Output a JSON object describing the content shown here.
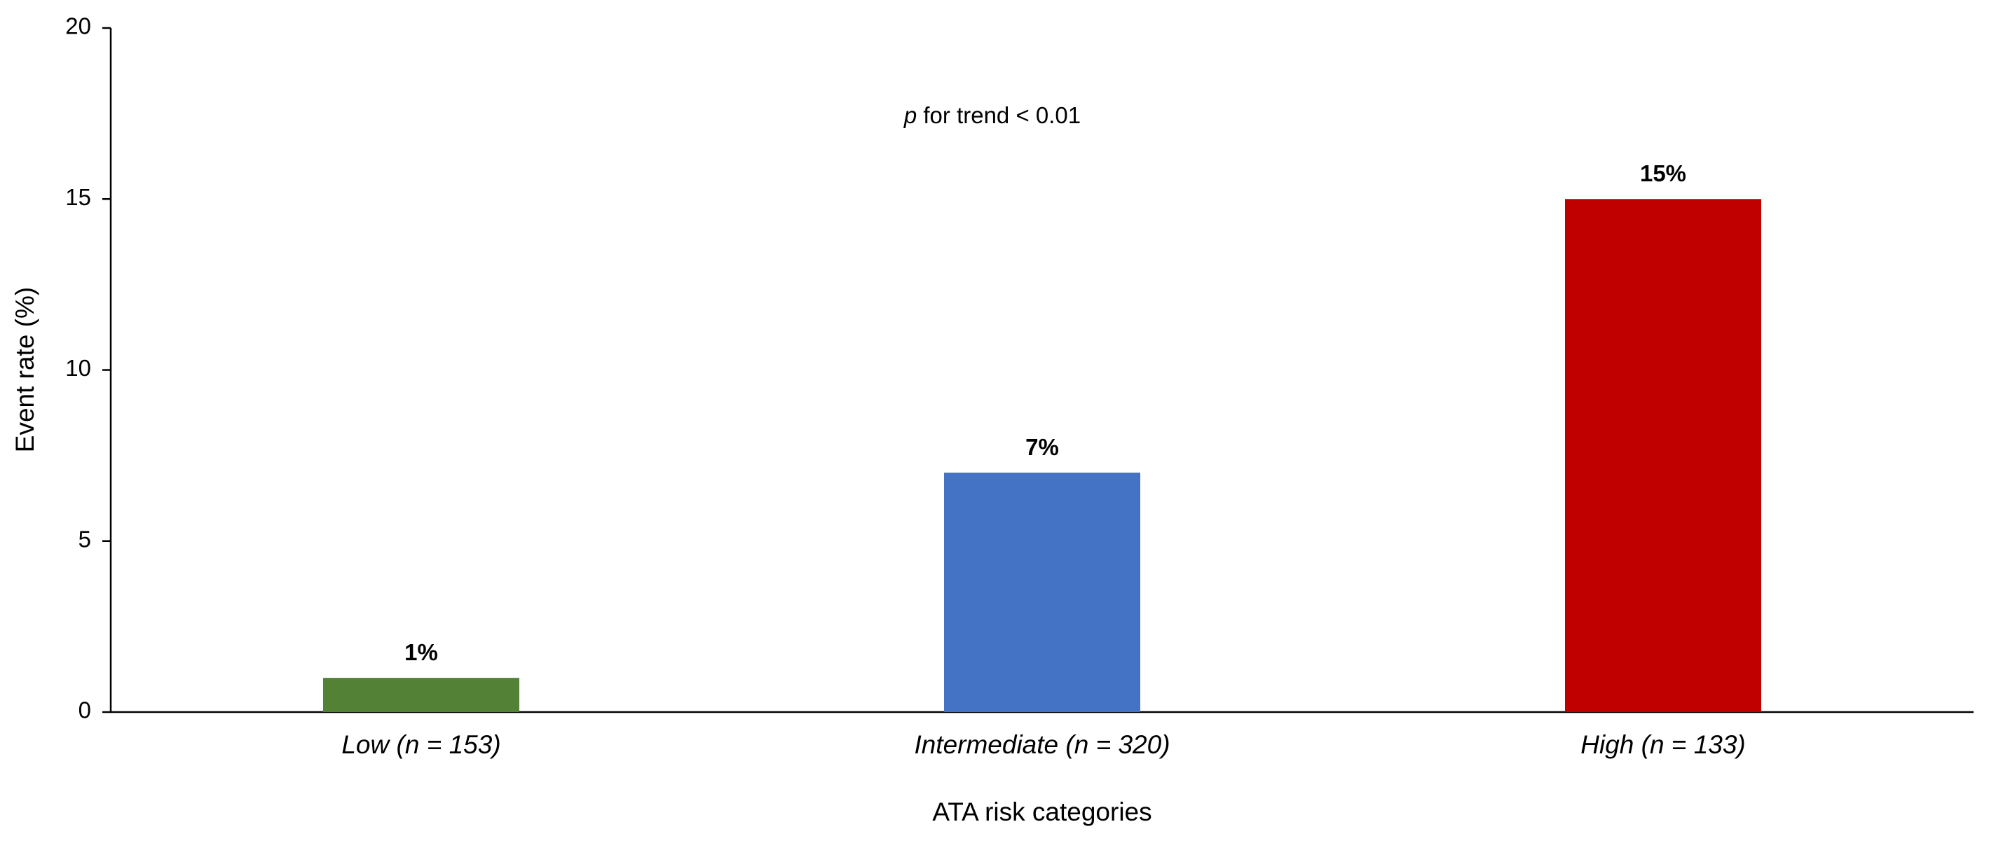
{
  "chart_data": {
    "type": "bar",
    "annotation": {
      "italic": "p",
      "text": "for trend < 0.01"
    },
    "x_label": "ATA risk categories",
    "y_label": "Event rate (%)",
    "categories": [
      "Low (n = 153)",
      "Intermediate (n = 320)",
      "High (n = 133)"
    ],
    "values": [
      1,
      7,
      15
    ],
    "value_labels": [
      "1%",
      "7%",
      "15%"
    ],
    "colors": [
      "#538135",
      "#4472c4",
      "#c00000"
    ],
    "ylim": [
      0,
      20
    ],
    "yticks": [
      0,
      5,
      10,
      15,
      20
    ],
    "grid": false
  }
}
